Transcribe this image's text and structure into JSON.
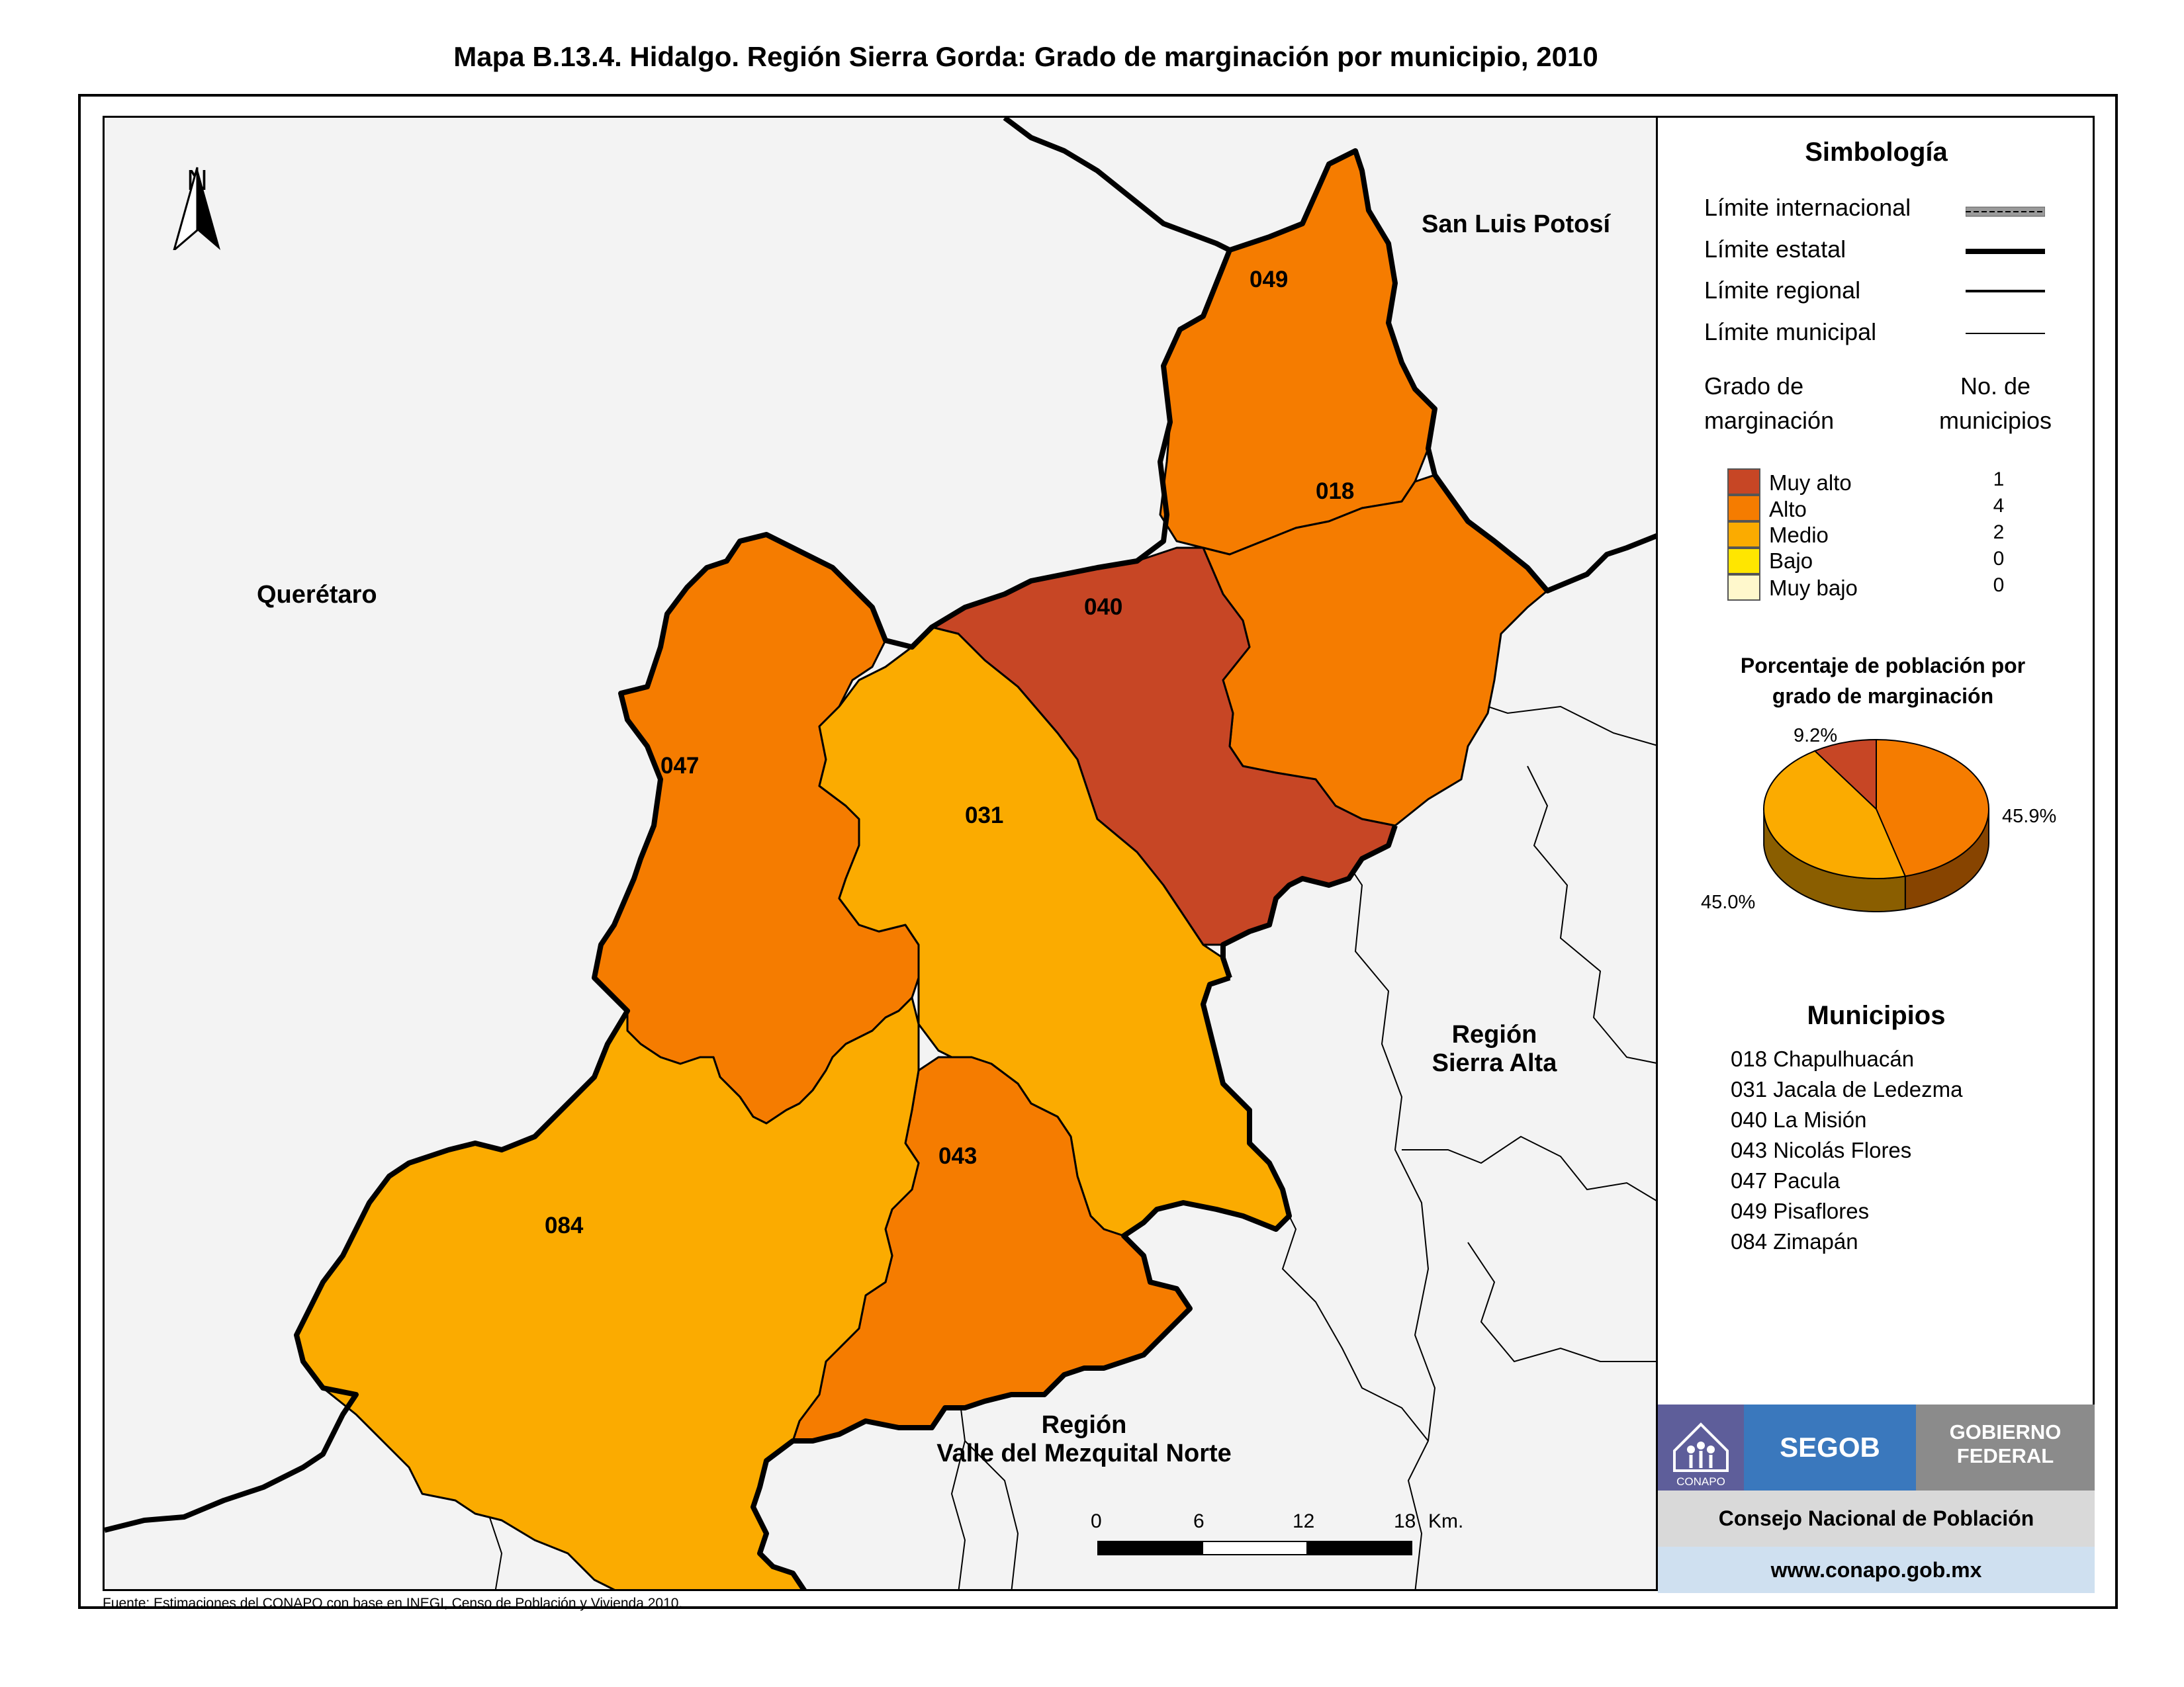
{
  "title": "Mapa B.13.4. Hidalgo. Región Sierra Gorda: Grado de marginación por municipio, 2010",
  "map": {
    "north_label": "N",
    "place_labels": {
      "san_luis_potosi": "San Luis Potosí",
      "queretaro": "Querétaro",
      "region_sierra_alta_1": "Región",
      "region_sierra_alta_2": "Sierra Alta",
      "region_valle_1": "Región",
      "region_valle_2": "Valle del Mezquital Norte"
    },
    "municipalities": [
      {
        "code": "049",
        "grade": "Alto",
        "color": "#f57c00"
      },
      {
        "code": "018",
        "grade": "Alto",
        "color": "#f57c00"
      },
      {
        "code": "040",
        "grade": "Muy alto",
        "color": "#c74625"
      },
      {
        "code": "047",
        "grade": "Alto",
        "color": "#f57c00"
      },
      {
        "code": "031",
        "grade": "Medio",
        "color": "#fbab00"
      },
      {
        "code": "043",
        "grade": "Alto",
        "color": "#f57c00"
      },
      {
        "code": "084",
        "grade": "Medio",
        "color": "#fbab00"
      }
    ],
    "scale": {
      "ticks": [
        "0",
        "6",
        "12",
        "18"
      ],
      "unit": "Km."
    }
  },
  "legend": {
    "title": "Simbología",
    "lines": [
      {
        "label": "Límite internacional"
      },
      {
        "label": "Límite estatal"
      },
      {
        "label": "Límite regional"
      },
      {
        "label": "Límite municipal"
      }
    ],
    "grade_header_1": "Grado de",
    "grade_header_2": "marginación",
    "count_header_1": "No. de",
    "count_header_2": "municipios",
    "categories": [
      {
        "label": "Muy alto",
        "count": "1",
        "color": "#c74625"
      },
      {
        "label": "Alto",
        "count": "4",
        "color": "#f57c00"
      },
      {
        "label": "Medio",
        "count": "2",
        "color": "#fbab00"
      },
      {
        "label": "Bajo",
        "count": "0",
        "color": "#ffe600"
      },
      {
        "label": "Muy bajo",
        "count": "0",
        "color": "#fff8cc"
      }
    ],
    "pie_title_1": "Porcentaje de población por",
    "pie_title_2": "grado de marginación",
    "municipios_title": "Municipios",
    "municipios": [
      "018 Chapulhuacán",
      "031 Jacala de Ledezma",
      "040 La Misión",
      "043 Nicolás Flores",
      "047 Pacula",
      "049 Pisaflores",
      "084 Zimapán"
    ]
  },
  "chart_data": {
    "type": "pie",
    "title": "Porcentaje de población por grado de marginación",
    "slices": [
      {
        "label": "Muy alto",
        "value": 9.2,
        "display": "9.2%",
        "color": "#c74625"
      },
      {
        "label": "Alto",
        "value": 45.9,
        "display": "45.9%",
        "color": "#f57c00"
      },
      {
        "label": "Medio",
        "value": 45.0,
        "display": "45.0%",
        "color": "#fbab00"
      }
    ]
  },
  "logos": {
    "conapo": "CONAPO",
    "segob": "SEGOB",
    "gobierno_1": "GOBIERNO",
    "gobierno_2": "FEDERAL",
    "consejo": "Consejo Nacional de Población",
    "web": "www.conapo.gob.mx"
  },
  "source": "Fuente: Estimaciones del CONAPO con base en INEGI, Censo de Población y Vivienda 2010."
}
